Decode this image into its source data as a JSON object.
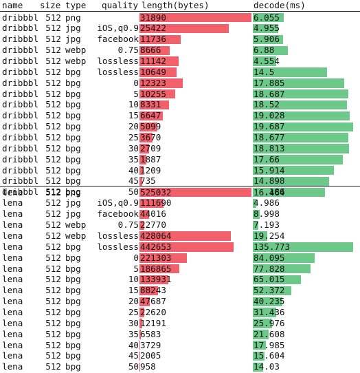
{
  "header": {
    "name": "name",
    "size": "size",
    "type": "type",
    "quality": "quality",
    "length": "length(bytes)",
    "decode": "decode(ms)"
  },
  "colors": {
    "length_bar": "#f2606b",
    "decode_bar": "#6cc98a"
  },
  "groups": [
    {
      "max_length": 31890,
      "max_decode": 19.687,
      "rows": [
        {
          "name": "dribbbl",
          "size": "512",
          "type": "png",
          "quality": "",
          "length": "31890",
          "decode": "6.055"
        },
        {
          "name": "dribbbl",
          "size": "512",
          "type": "jpg",
          "quality": "iOS,q0.9",
          "length": "25422",
          "decode": "4.955"
        },
        {
          "name": "dribbbl",
          "size": "512",
          "type": "jpg",
          "quality": "facebook",
          "length": "11736",
          "decode": "5.906"
        },
        {
          "name": "dribbbl",
          "size": "512",
          "type": "webp",
          "quality": "0.75",
          "length": "8666",
          "decode": "6.88"
        },
        {
          "name": "dribbbl",
          "size": "512",
          "type": "webp",
          "quality": "lossless",
          "length": "11142",
          "decode": "4.554"
        },
        {
          "name": "dribbbl",
          "size": "512",
          "type": "bpg",
          "quality": "lossless",
          "length": "10649",
          "decode": "14.5"
        },
        {
          "name": "dribbbl",
          "size": "512",
          "type": "bpg",
          "quality": "0",
          "length": "12323",
          "decode": "17.885"
        },
        {
          "name": "dribbbl",
          "size": "512",
          "type": "bpg",
          "quality": "5",
          "length": "10255",
          "decode": "18.687"
        },
        {
          "name": "dribbbl",
          "size": "512",
          "type": "bpg",
          "quality": "10",
          "length": "8331",
          "decode": "18.52"
        },
        {
          "name": "dribbbl",
          "size": "512",
          "type": "bpg",
          "quality": "15",
          "length": "6647",
          "decode": "19.028"
        },
        {
          "name": "dribbbl",
          "size": "512",
          "type": "bpg",
          "quality": "20",
          "length": "5099",
          "decode": "19.687"
        },
        {
          "name": "dribbbl",
          "size": "512",
          "type": "bpg",
          "quality": "25",
          "length": "3670",
          "decode": "18.677"
        },
        {
          "name": "dribbbl",
          "size": "512",
          "type": "bpg",
          "quality": "30",
          "length": "2709",
          "decode": "18.813"
        },
        {
          "name": "dribbbl",
          "size": "512",
          "type": "bpg",
          "quality": "35",
          "length": "1887",
          "decode": "17.66"
        },
        {
          "name": "dribbbl",
          "size": "512",
          "type": "bpg",
          "quality": "40",
          "length": "1209",
          "decode": "15.914"
        },
        {
          "name": "dribbbl",
          "size": "512",
          "type": "bpg",
          "quality": "45",
          "length": "735",
          "decode": "14.898"
        },
        {
          "name": "dribbbl",
          "size": "512",
          "type": "bpg",
          "quality": "50",
          "length": "490",
          "decode": "14.186"
        }
      ]
    },
    {
      "max_length": 525032,
      "max_decode": 135.773,
      "rows": [
        {
          "name": "lena",
          "size": "512",
          "type": "png",
          "quality": "",
          "length": "525032",
          "decode": "16.464"
        },
        {
          "name": "lena",
          "size": "512",
          "type": "jpg",
          "quality": "iOS,q0.9",
          "length": "111690",
          "decode": "4.986"
        },
        {
          "name": "lena",
          "size": "512",
          "type": "jpg",
          "quality": "facebook",
          "length": "44016",
          "decode": "8.998"
        },
        {
          "name": "lena",
          "size": "512",
          "type": "webp",
          "quality": "0.75",
          "length": "22770",
          "decode": "7.193"
        },
        {
          "name": "lena",
          "size": "512",
          "type": "webp",
          "quality": "lossless",
          "length": "428064",
          "decode": "19.254"
        },
        {
          "name": "lena",
          "size": "512",
          "type": "bpg",
          "quality": "lossless",
          "length": "442653",
          "decode": "135.773"
        },
        {
          "name": "lena",
          "size": "512",
          "type": "bpg",
          "quality": "0",
          "length": "221303",
          "decode": "84.095"
        },
        {
          "name": "lena",
          "size": "512",
          "type": "bpg",
          "quality": "5",
          "length": "186865",
          "decode": "77.828"
        },
        {
          "name": "lena",
          "size": "512",
          "type": "bpg",
          "quality": "10",
          "length": "133931",
          "decode": "65.015"
        },
        {
          "name": "lena",
          "size": "512",
          "type": "bpg",
          "quality": "15",
          "length": "88243",
          "decode": "52.372"
        },
        {
          "name": "lena",
          "size": "512",
          "type": "bpg",
          "quality": "20",
          "length": "47687",
          "decode": "40.235"
        },
        {
          "name": "lena",
          "size": "512",
          "type": "bpg",
          "quality": "25",
          "length": "22620",
          "decode": "31.436"
        },
        {
          "name": "lena",
          "size": "512",
          "type": "bpg",
          "quality": "30",
          "length": "12191",
          "decode": "25.976"
        },
        {
          "name": "lena",
          "size": "512",
          "type": "bpg",
          "quality": "35",
          "length": "6583",
          "decode": "21.608"
        },
        {
          "name": "lena",
          "size": "512",
          "type": "bpg",
          "quality": "40",
          "length": "3729",
          "decode": "17.985"
        },
        {
          "name": "lena",
          "size": "512",
          "type": "bpg",
          "quality": "45",
          "length": "2005",
          "decode": "15.604"
        },
        {
          "name": "lena",
          "size": "512",
          "type": "bpg",
          "quality": "50",
          "length": "958",
          "decode": "14.03"
        }
      ]
    }
  ]
}
